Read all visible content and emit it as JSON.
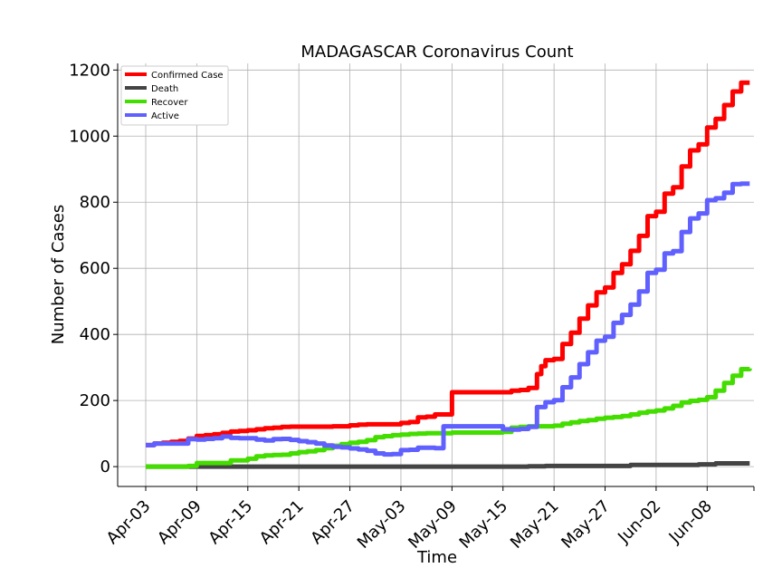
{
  "chart_data": {
    "type": "line",
    "title": "MADAGASCAR Coronavirus Count",
    "xlabel": "Time",
    "ylabel": "Number of Cases",
    "x_ticks": [
      "Apr-03",
      "Apr-09",
      "Apr-15",
      "Apr-21",
      "Apr-27",
      "May-03",
      "May-09",
      "May-15",
      "May-21",
      "May-27",
      "Jun-02",
      "Jun-08"
    ],
    "y_ticks": [
      0,
      200,
      400,
      600,
      800,
      1000,
      1200
    ],
    "ylim": [
      -60,
      1220
    ],
    "xlim_days": [
      -3.3,
      71.5
    ],
    "grid": true,
    "legend_position": "top-left",
    "series": [
      {
        "name": "Confirmed Case",
        "color": "#ff0000",
        "points": [
          [
            0,
            65
          ],
          [
            1,
            70
          ],
          [
            2,
            72
          ],
          [
            3,
            75
          ],
          [
            4,
            78
          ],
          [
            5,
            85
          ],
          [
            6,
            93
          ],
          [
            7,
            95
          ],
          [
            8,
            98
          ],
          [
            9,
            102
          ],
          [
            10,
            106
          ],
          [
            11,
            108
          ],
          [
            12,
            110
          ],
          [
            13,
            113
          ],
          [
            14,
            116
          ],
          [
            15,
            118
          ],
          [
            16,
            120
          ],
          [
            17,
            121
          ],
          [
            18,
            121
          ],
          [
            19,
            121
          ],
          [
            20,
            121
          ],
          [
            21,
            121
          ],
          [
            22,
            122
          ],
          [
            23,
            122
          ],
          [
            24,
            125
          ],
          [
            25,
            127
          ],
          [
            26,
            128
          ],
          [
            27,
            128
          ],
          [
            28,
            128
          ],
          [
            29,
            128
          ],
          [
            30,
            132
          ],
          [
            31,
            135
          ],
          [
            32,
            149
          ],
          [
            33,
            151
          ],
          [
            34,
            158
          ],
          [
            35,
            158
          ],
          [
            36,
            225
          ],
          [
            37,
            225
          ],
          [
            38,
            225
          ],
          [
            39,
            225
          ],
          [
            40,
            225
          ],
          [
            41,
            225
          ],
          [
            42,
            225
          ],
          [
            43,
            230
          ],
          [
            44,
            232
          ],
          [
            45,
            238
          ],
          [
            46,
            280
          ],
          [
            46.5,
            304
          ],
          [
            47,
            322
          ],
          [
            48,
            326
          ],
          [
            49,
            371
          ],
          [
            50,
            405
          ],
          [
            51,
            448
          ],
          [
            52,
            488
          ],
          [
            53,
            527
          ],
          [
            54,
            542
          ],
          [
            55,
            586
          ],
          [
            56,
            612
          ],
          [
            57,
            653
          ],
          [
            58,
            698
          ],
          [
            59,
            758
          ],
          [
            60,
            771
          ],
          [
            61,
            826
          ],
          [
            62,
            845
          ],
          [
            63,
            908
          ],
          [
            64,
            957
          ],
          [
            65,
            975
          ],
          [
            66,
            1026
          ],
          [
            67,
            1052
          ],
          [
            68,
            1094
          ],
          [
            69,
            1135
          ],
          [
            70,
            1162
          ],
          [
            71,
            1162
          ]
        ]
      },
      {
        "name": "Death",
        "color": "#444444",
        "points": [
          [
            0,
            0
          ],
          [
            44,
            0
          ],
          [
            45,
            1
          ],
          [
            46,
            1
          ],
          [
            47,
            2
          ],
          [
            56,
            2
          ],
          [
            57,
            5
          ],
          [
            64,
            5
          ],
          [
            65,
            7
          ],
          [
            67,
            10
          ],
          [
            71,
            10
          ]
        ]
      },
      {
        "name": "Recover",
        "color": "#44dd00",
        "points": [
          [
            0,
            0
          ],
          [
            5,
            2
          ],
          [
            6,
            11
          ],
          [
            9,
            11
          ],
          [
            10,
            19
          ],
          [
            12,
            24
          ],
          [
            13,
            31
          ],
          [
            14,
            34
          ],
          [
            15,
            35
          ],
          [
            16,
            36
          ],
          [
            17,
            40
          ],
          [
            18,
            44
          ],
          [
            19,
            46
          ],
          [
            20,
            50
          ],
          [
            21,
            56
          ],
          [
            22,
            63
          ],
          [
            23,
            68
          ],
          [
            24,
            72
          ],
          [
            25,
            75
          ],
          [
            26,
            80
          ],
          [
            27,
            89
          ],
          [
            28,
            92
          ],
          [
            29,
            95
          ],
          [
            30,
            97
          ],
          [
            31,
            99
          ],
          [
            32,
            100
          ],
          [
            33,
            101
          ],
          [
            34,
            101
          ],
          [
            35,
            101
          ],
          [
            36,
            103
          ],
          [
            37,
            103
          ],
          [
            38,
            103
          ],
          [
            39,
            103
          ],
          [
            40,
            103
          ],
          [
            41,
            103
          ],
          [
            42,
            105
          ],
          [
            43,
            118
          ],
          [
            44,
            120
          ],
          [
            45,
            122
          ],
          [
            46,
            122
          ],
          [
            47,
            122
          ],
          [
            48,
            124
          ],
          [
            49,
            130
          ],
          [
            50,
            134
          ],
          [
            51,
            138
          ],
          [
            52,
            141
          ],
          [
            53,
            145
          ],
          [
            54,
            148
          ],
          [
            55,
            150
          ],
          [
            56,
            153
          ],
          [
            57,
            158
          ],
          [
            58,
            163
          ],
          [
            59,
            167
          ],
          [
            60,
            170
          ],
          [
            61,
            176
          ],
          [
            62,
            184
          ],
          [
            63,
            194
          ],
          [
            64,
            199
          ],
          [
            65,
            202
          ],
          [
            66,
            210
          ],
          [
            67,
            230
          ],
          [
            68,
            253
          ],
          [
            69,
            275
          ],
          [
            70,
            295
          ],
          [
            71,
            297
          ]
        ]
      },
      {
        "name": "Active",
        "color": "#6060ff",
        "points": [
          [
            0,
            65
          ],
          [
            1,
            70
          ],
          [
            2,
            70
          ],
          [
            3,
            70
          ],
          [
            4,
            70
          ],
          [
            5,
            83
          ],
          [
            6,
            82
          ],
          [
            7,
            84
          ],
          [
            8,
            86
          ],
          [
            9,
            91
          ],
          [
            10,
            87
          ],
          [
            11,
            86
          ],
          [
            12,
            86
          ],
          [
            13,
            82
          ],
          [
            14,
            79
          ],
          [
            15,
            83
          ],
          [
            16,
            84
          ],
          [
            17,
            81
          ],
          [
            18,
            77
          ],
          [
            19,
            74
          ],
          [
            20,
            70
          ],
          [
            21,
            64
          ],
          [
            22,
            60
          ],
          [
            23,
            58
          ],
          [
            24,
            55
          ],
          [
            25,
            52
          ],
          [
            26,
            48
          ],
          [
            27,
            40
          ],
          [
            28,
            37
          ],
          [
            29,
            38
          ],
          [
            30,
            50
          ],
          [
            31,
            51
          ],
          [
            32,
            57
          ],
          [
            33,
            57
          ],
          [
            34,
            56
          ],
          [
            35,
            122
          ],
          [
            36,
            122
          ],
          [
            37,
            122
          ],
          [
            38,
            122
          ],
          [
            39,
            122
          ],
          [
            40,
            122
          ],
          [
            41,
            122
          ],
          [
            42,
            113
          ],
          [
            43,
            112
          ],
          [
            44,
            114
          ],
          [
            45,
            120
          ],
          [
            46,
            180
          ],
          [
            47,
            195
          ],
          [
            48,
            201
          ],
          [
            49,
            240
          ],
          [
            50,
            270
          ],
          [
            51,
            310
          ],
          [
            52,
            346
          ],
          [
            53,
            381
          ],
          [
            54,
            393
          ],
          [
            55,
            435
          ],
          [
            56,
            459
          ],
          [
            57,
            490
          ],
          [
            58,
            530
          ],
          [
            59,
            586
          ],
          [
            60,
            596
          ],
          [
            61,
            645
          ],
          [
            62,
            652
          ],
          [
            63,
            710
          ],
          [
            64,
            751
          ],
          [
            65,
            766
          ],
          [
            66,
            806
          ],
          [
            67,
            812
          ],
          [
            68,
            829
          ],
          [
            69,
            855
          ],
          [
            70,
            856
          ],
          [
            71,
            856
          ]
        ]
      }
    ]
  }
}
